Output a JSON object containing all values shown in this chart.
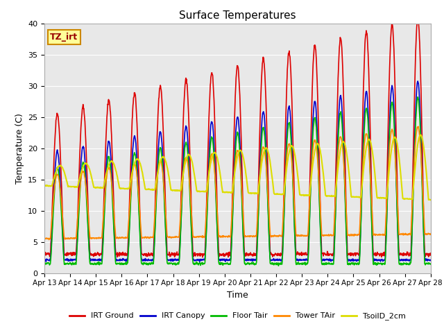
{
  "title": "Surface Temperatures",
  "xlabel": "Time",
  "ylabel": "Temperature (C)",
  "ylim": [
    0,
    40
  ],
  "annotation": "TZ_irt",
  "bg_color": "#e8e8e8",
  "x_tick_labels": [
    "Apr 13",
    "Apr 14",
    "Apr 15",
    "Apr 16",
    "Apr 17",
    "Apr 18",
    "Apr 19",
    "Apr 20",
    "Apr 21",
    "Apr 22",
    "Apr 23",
    "Apr 24",
    "Apr 25",
    "Apr 26",
    "Apr 27",
    "Apr 28"
  ],
  "series": {
    "IRT Ground": {
      "color": "#dd0000",
      "lw": 1.2
    },
    "IRT Canopy": {
      "color": "#0000cc",
      "lw": 1.2
    },
    "Floor Tair": {
      "color": "#00bb00",
      "lw": 1.2
    },
    "Tower TAir": {
      "color": "#ff8800",
      "lw": 1.2
    },
    "TsoilD_2cm": {
      "color": "#dddd00",
      "lw": 1.5
    }
  },
  "legend_order": [
    "IRT Ground",
    "IRT Canopy",
    "Floor Tair",
    "Tower TAir",
    "TsoilD_2cm"
  ]
}
